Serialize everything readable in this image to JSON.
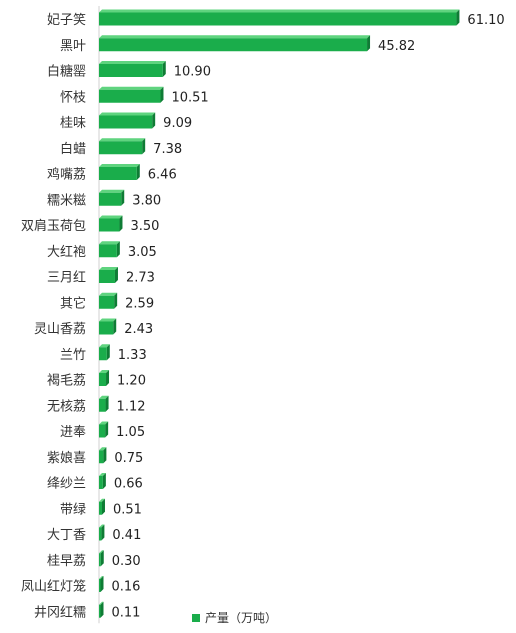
{
  "chart_data": {
    "type": "bar",
    "orientation": "horizontal",
    "categories": [
      "妃子笑",
      "黑叶",
      "白糖罂",
      "怀枝",
      "桂味",
      "白蜡",
      "鸡嘴荔",
      "糯米糍",
      "双肩玉荷包",
      "大红袍",
      "三月红",
      "其它",
      "灵山香荔",
      "兰竹",
      "褐毛荔",
      "无核荔",
      "进奉",
      "紫娘喜",
      "绛纱兰",
      "带绿",
      "大丁香",
      "桂早荔",
      "凤山红灯笼",
      "井冈红糯"
    ],
    "series": [
      {
        "name": "产量（万吨）",
        "values": [
          61.1,
          45.82,
          10.9,
          10.51,
          9.09,
          7.38,
          6.46,
          3.8,
          3.5,
          3.05,
          2.73,
          2.59,
          2.43,
          1.33,
          1.2,
          1.12,
          1.05,
          0.75,
          0.66,
          0.51,
          0.41,
          0.3,
          0.16,
          0.11
        ],
        "labels": [
          "61.10",
          "45.82",
          "10.90",
          "10.51",
          "9.09",
          "7.38",
          "6.46",
          "3.80",
          "3.50",
          "3.05",
          "2.73",
          "2.59",
          "2.43",
          "1.33",
          "1.20",
          "1.12",
          "1.05",
          "0.75",
          "0.66",
          "0.51",
          "0.41",
          "0.30",
          "0.16",
          "0.11"
        ],
        "color": "#1aad4b"
      }
    ],
    "xlim": [
      0,
      64
    ],
    "grid": false,
    "legend_position": "bottom"
  }
}
